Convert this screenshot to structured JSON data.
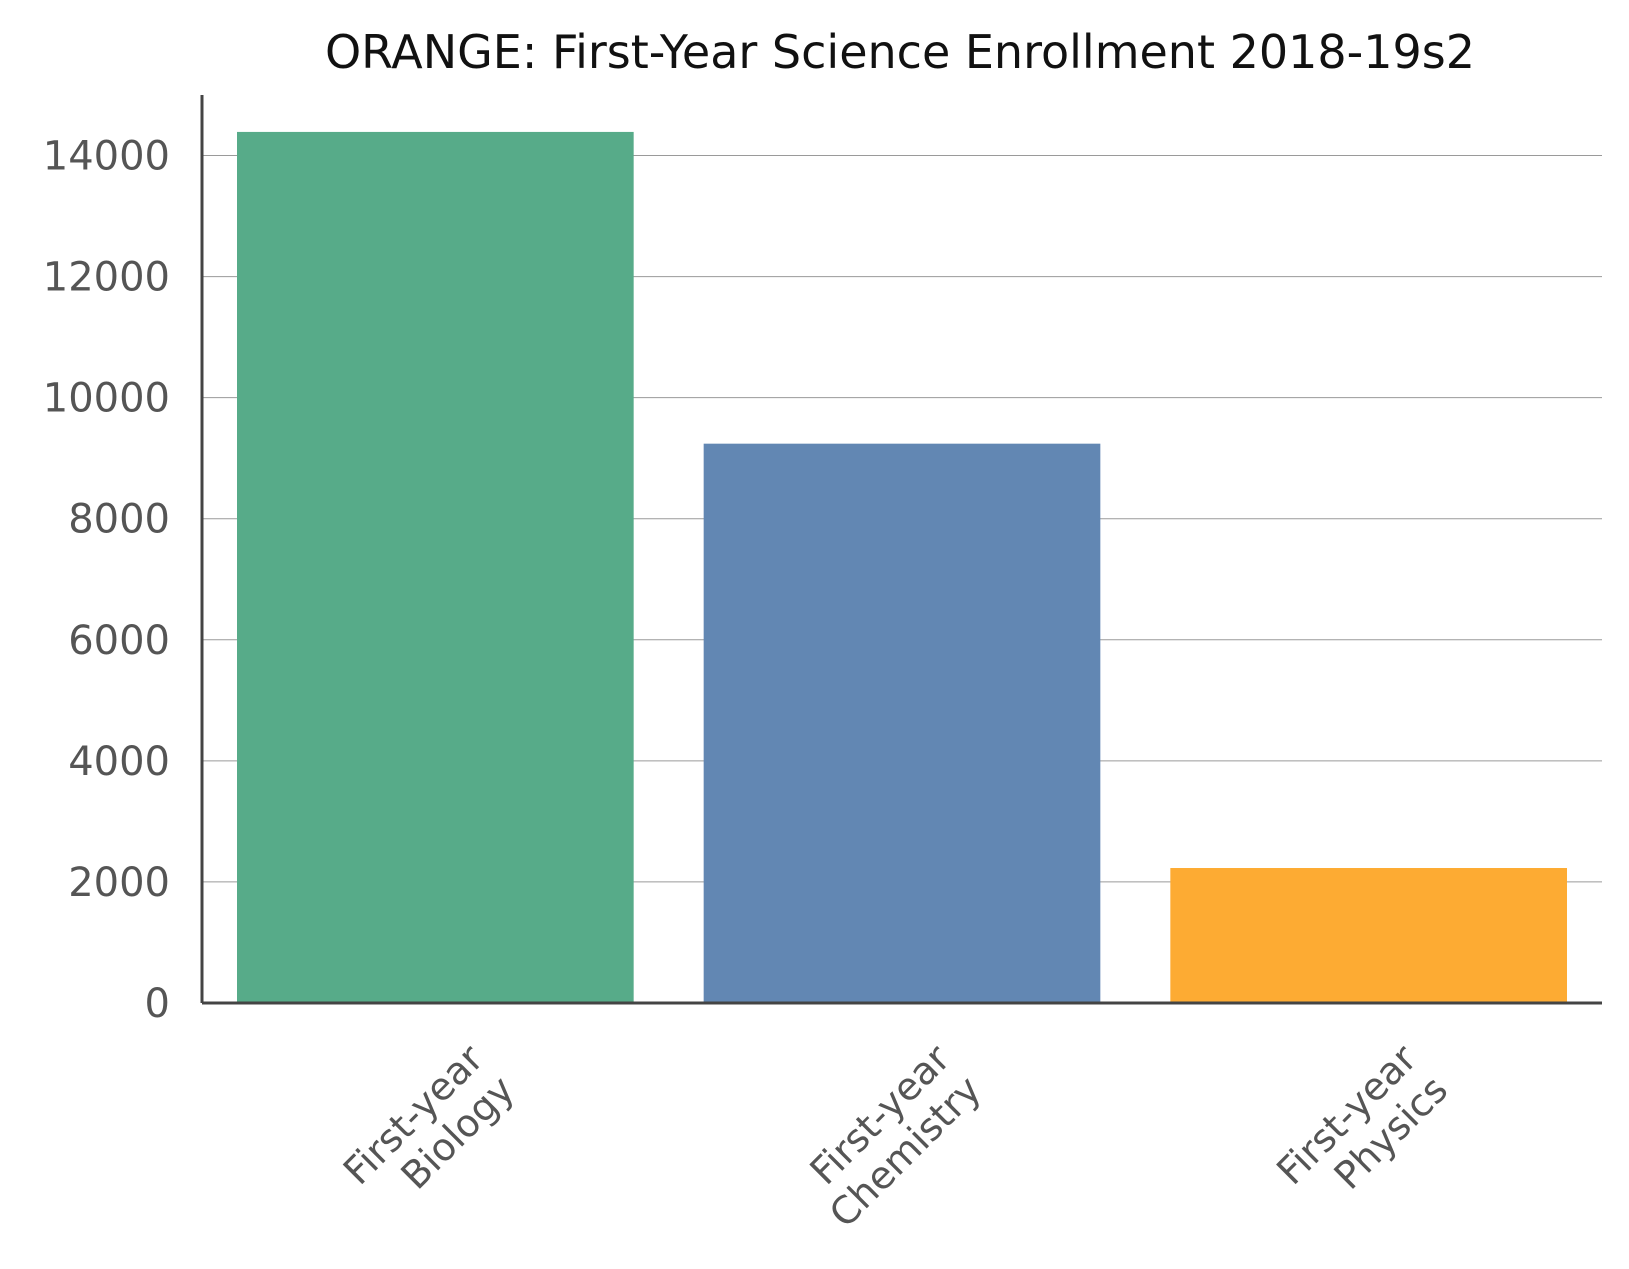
{
  "chart_data": {
    "type": "bar",
    "title": "ORANGE: First-Year Science Enrollment 2018-19s2",
    "xlabel": "",
    "ylabel": "",
    "categories": [
      [
        "First-year",
        "Biology"
      ],
      [
        "First-year",
        "Chemistry"
      ],
      [
        "First-year",
        "Physics"
      ]
    ],
    "values": [
      14390,
      9240,
      2230
    ],
    "colors": [
      "#57ab89",
      "#6287b3",
      "#fdab33"
    ],
    "ylim": [
      0,
      15000
    ],
    "yticks": [
      0,
      2000,
      4000,
      6000,
      8000,
      10000,
      12000,
      14000
    ],
    "grid": true,
    "legend": "none"
  }
}
